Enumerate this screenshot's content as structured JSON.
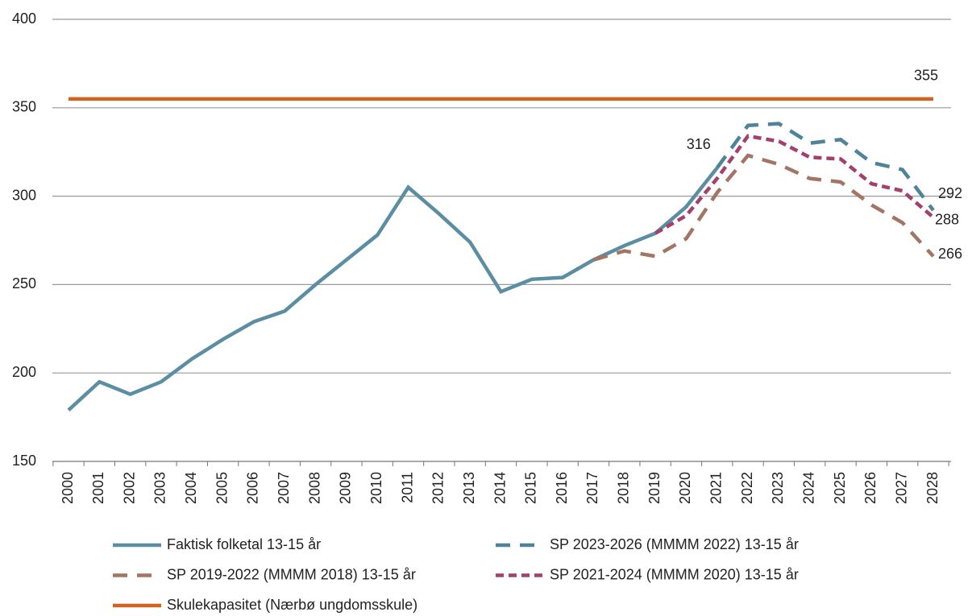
{
  "chart_data": {
    "type": "line",
    "categories": [
      "2000",
      "2001",
      "2002",
      "2003",
      "2004",
      "2005",
      "2006",
      "2007",
      "2008",
      "2009",
      "2010",
      "2011",
      "2012",
      "2013",
      "2014",
      "2015",
      "2016",
      "2017",
      "2018",
      "2019",
      "2020",
      "2021",
      "2022",
      "2023",
      "2024",
      "2025",
      "2026",
      "2027",
      "2028"
    ],
    "series": [
      {
        "name": "Faktisk folketal 13-15 år",
        "color": "#5b8ea2",
        "dash": "solid",
        "values": [
          179,
          195,
          188,
          195,
          208,
          219,
          229,
          235,
          250,
          264,
          278,
          305,
          290,
          274,
          246,
          253,
          254,
          264,
          272,
          279,
          294,
          316,
          null,
          null,
          null,
          null,
          null,
          null,
          null
        ]
      },
      {
        "name": "SP 2023-2026 (MMMM 2022) 13-15 år",
        "color": "#4f8399",
        "dash": "long",
        "values": [
          null,
          null,
          null,
          null,
          null,
          null,
          null,
          null,
          null,
          null,
          null,
          null,
          null,
          null,
          null,
          null,
          null,
          null,
          null,
          null,
          null,
          316,
          340,
          341,
          330,
          332,
          319,
          315,
          292
        ]
      },
      {
        "name": "SP 2019-2022 (MMMM 2018) 13-15 år",
        "color": "#a27565",
        "dash": "long",
        "values": [
          null,
          null,
          null,
          null,
          null,
          null,
          null,
          null,
          null,
          null,
          null,
          null,
          null,
          null,
          null,
          null,
          null,
          264,
          269,
          266,
          276,
          302,
          323,
          318,
          310,
          308,
          295,
          285,
          266
        ]
      },
      {
        "name": "SP 2021-2024 (MMMM 2020) 13-15 år",
        "color": "#a3406d",
        "dash": "short",
        "values": [
          null,
          null,
          null,
          null,
          null,
          null,
          null,
          null,
          null,
          null,
          null,
          null,
          null,
          null,
          null,
          null,
          null,
          null,
          null,
          279,
          289,
          310,
          334,
          331,
          322,
          321,
          307,
          303,
          288
        ]
      },
      {
        "name": "Skulekapasitet (Nærbø ungdomsskule)",
        "color": "#d0631f",
        "dash": "solid",
        "values": [
          355,
          355,
          355,
          355,
          355,
          355,
          355,
          355,
          355,
          355,
          355,
          355,
          355,
          355,
          355,
          355,
          355,
          355,
          355,
          355,
          355,
          355,
          355,
          355,
          355,
          355,
          355,
          355,
          355
        ]
      }
    ],
    "ylim": [
      150,
      400
    ],
    "yticks": [
      150,
      200,
      250,
      300,
      350,
      400
    ],
    "grid": true
  }
}
